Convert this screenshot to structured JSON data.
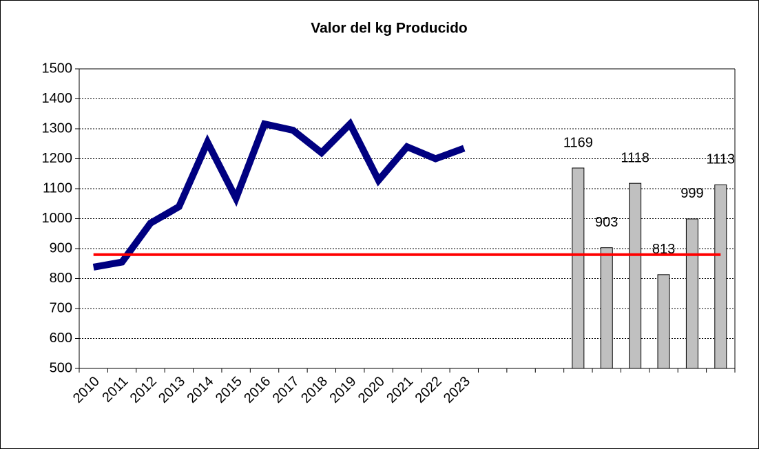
{
  "chart_data": {
    "type": "combo",
    "title": "Valor del kg Producido",
    "categories": [
      "2010",
      "2011",
      "2012",
      "2013",
      "2014",
      "2015",
      "2016",
      "2017",
      "2018",
      "2019",
      "2020",
      "2021",
      "2022",
      "2023",
      null,
      null,
      null,
      null,
      null,
      null,
      null,
      null,
      null
    ],
    "series": [
      {
        "type": "bar",
        "color": "#c0c0c0",
        "values": [
          null,
          null,
          null,
          null,
          null,
          null,
          null,
          null,
          null,
          null,
          null,
          null,
          null,
          null,
          null,
          null,
          null,
          1169,
          903,
          1118,
          813,
          999,
          1113
        ]
      },
      {
        "type": "line",
        "color": "#000080",
        "values": [
          838,
          855,
          985,
          1040,
          1255,
          1068,
          1316,
          1295,
          1220,
          1316,
          1128,
          1240,
          1200,
          1235,
          null,
          null,
          null,
          null,
          null,
          null,
          null,
          null,
          null
        ]
      },
      {
        "type": "line",
        "color": "#ff0000",
        "values": [
          880,
          880,
          880,
          880,
          880,
          880,
          880,
          880,
          880,
          880,
          880,
          880,
          880,
          880,
          880,
          880,
          880,
          880,
          880,
          880,
          880,
          880,
          880
        ]
      }
    ],
    "ylim": [
      500,
      1500
    ],
    "yticks": [
      500,
      600,
      700,
      800,
      900,
      1000,
      1100,
      1200,
      1300,
      1400,
      1500
    ],
    "grid": true,
    "data_labels": true
  }
}
